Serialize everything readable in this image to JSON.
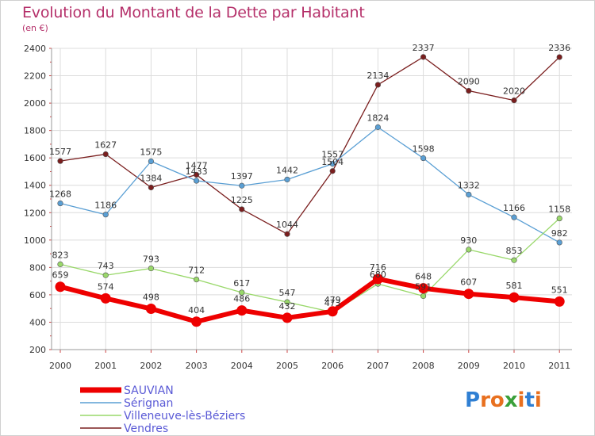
{
  "title": "Evolution du Montant de la Dette par Habitant",
  "subtitle": "(en €)",
  "logo": {
    "letters": [
      "P",
      "r",
      "o",
      "x",
      "i",
      "t",
      "i"
    ],
    "colors": [
      "#2f7fd3",
      "#e8701f",
      "#e8701f",
      "#3aa03a",
      "#e8701f",
      "#2f7fd3",
      "#e8701f"
    ]
  },
  "chart_data": {
    "type": "line",
    "x": [
      "2000",
      "2001",
      "2002",
      "2003",
      "2004",
      "2005",
      "2006",
      "2007",
      "2008",
      "2009",
      "2010",
      "2011"
    ],
    "ylim": [
      200,
      2400
    ],
    "yticks": [
      "200",
      "400",
      "600",
      "800",
      "1000",
      "1200",
      "1400",
      "1600",
      "1800",
      "2000",
      "2200",
      "2400"
    ],
    "grid": true,
    "legend_position": "bottom-left",
    "series": [
      {
        "name": "Vendres",
        "color": "#7a1e1e",
        "values": [
          1577,
          1627,
          1384,
          1477,
          1225,
          1044,
          1504,
          2134,
          2337,
          2090,
          2020,
          2336
        ]
      },
      {
        "name": "Sérignan",
        "color": "#5a9fd4",
        "values": [
          1268,
          1186,
          1575,
          1433,
          1397,
          1442,
          1557,
          1824,
          1598,
          1332,
          1166,
          982
        ]
      },
      {
        "name": "Villeneuve-lès-Béziers",
        "color": "#99d86a",
        "values": [
          823,
          743,
          793,
          712,
          617,
          547,
          473,
          680,
          591,
          930,
          853,
          1158
        ]
      },
      {
        "name": "SAUVIAN",
        "color": "#ee0000",
        "values": [
          659,
          574,
          498,
          404,
          486,
          432,
          479,
          716,
          648,
          607,
          581,
          551
        ]
      }
    ],
    "legend_order": [
      "SAUVIAN",
      "Sérignan",
      "Villeneuve-lès-Béziers",
      "Vendres"
    ]
  }
}
